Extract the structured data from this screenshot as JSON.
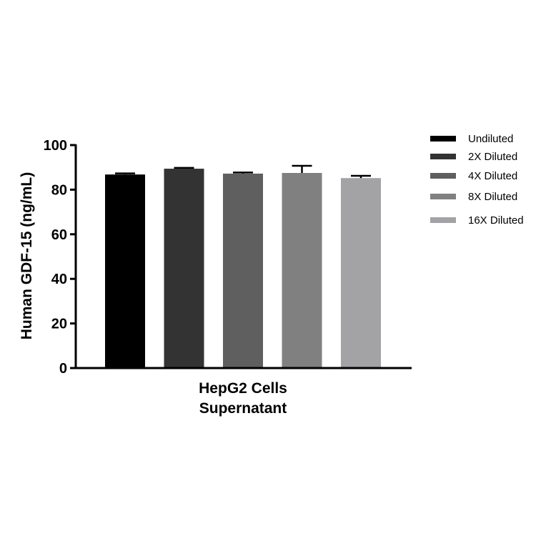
{
  "chart_data": {
    "type": "bar",
    "title": "",
    "xlabel_lines": [
      "HepG2 Cells",
      "Supernatant"
    ],
    "ylabel": "Human GDF-15 (ng/mL)",
    "ylim": [
      0,
      100
    ],
    "yticks": [
      0,
      20,
      40,
      60,
      80,
      100
    ],
    "legend_position": "right",
    "series": [
      {
        "name": "Undiluted",
        "value": 86.8,
        "error": 0.5,
        "color": "#000000"
      },
      {
        "name": "2X Diluted",
        "value": 89.4,
        "error": 0.4,
        "color": "#333333"
      },
      {
        "name": "4X Diluted",
        "value": 87.2,
        "error": 0.5,
        "color": "#5f5f5f"
      },
      {
        "name": "8X Diluted",
        "value": 87.5,
        "error": 3.2,
        "color": "#808080"
      },
      {
        "name": "16X Diluted",
        "value": 85.2,
        "error": 1.0,
        "color": "#a3a3a6"
      }
    ]
  }
}
